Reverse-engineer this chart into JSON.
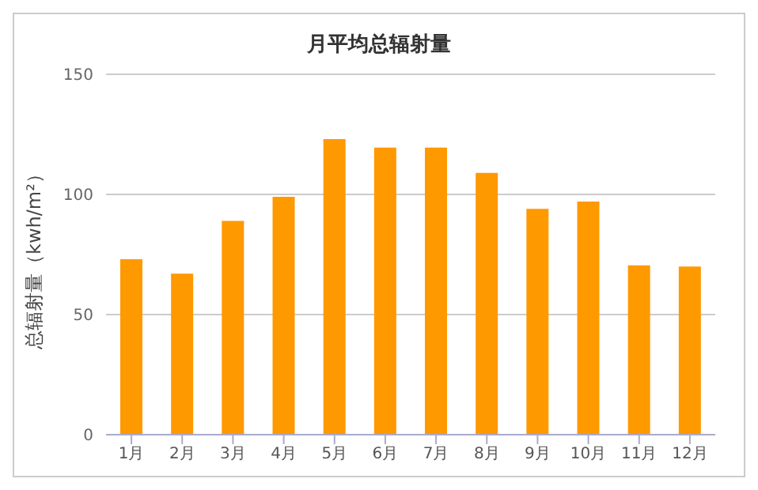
{
  "chart_data": {
    "type": "bar",
    "title": "月平均总辐射量",
    "ylabel": "总辐射量（kwh/m²）",
    "categories": [
      "1月",
      "2月",
      "3月",
      "4月",
      "5月",
      "6月",
      "7月",
      "8月",
      "9月",
      "10月",
      "11月",
      "12月"
    ],
    "values": [
      73,
      67,
      89,
      99,
      123,
      119.5,
      119.5,
      109,
      94,
      97,
      70.5,
      70
    ],
    "color": "#ff9900",
    "ylim": [
      0,
      150
    ],
    "yticks": [
      0,
      50,
      100,
      150
    ],
    "grid": "y"
  }
}
